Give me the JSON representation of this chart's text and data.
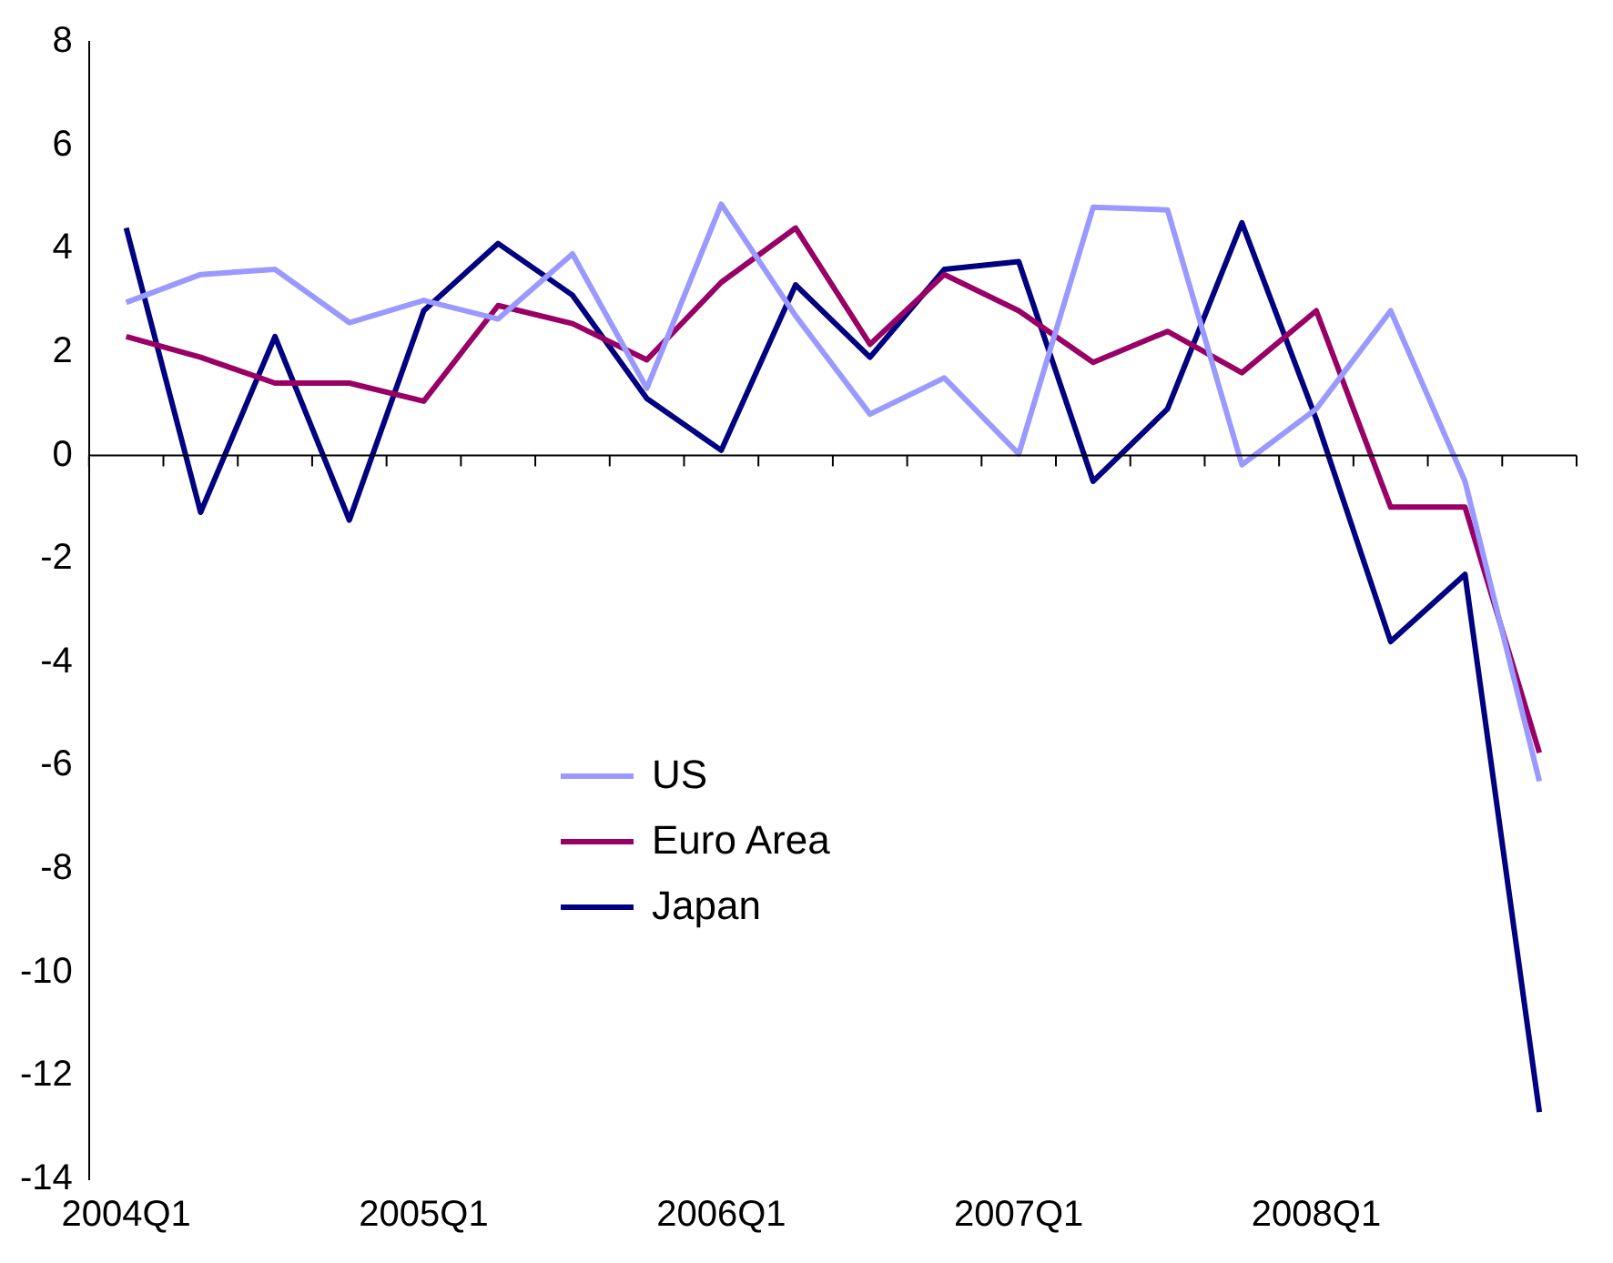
{
  "chart_data": {
    "type": "line",
    "categories": [
      "2004Q1",
      null,
      null,
      null,
      "2005Q1",
      null,
      null,
      null,
      "2006Q1",
      null,
      null,
      null,
      "2007Q1",
      null,
      null,
      null,
      "2008Q1",
      null,
      null,
      null
    ],
    "series": [
      {
        "name": "US",
        "color": "#9999ff",
        "values": [
          2.96,
          3.5,
          3.6,
          2.57,
          3.0,
          2.64,
          3.9,
          1.3,
          4.86,
          2.7,
          0.8,
          1.5,
          0.03,
          4.8,
          4.75,
          -0.18,
          0.9,
          2.8,
          -0.5,
          -6.3
        ]
      },
      {
        "name": "Euro Area",
        "color": "#990066",
        "values": [
          2.3,
          1.9,
          1.4,
          1.4,
          1.05,
          2.9,
          2.55,
          1.85,
          3.35,
          4.4,
          2.15,
          3.5,
          2.8,
          1.8,
          2.4,
          1.6,
          2.8,
          -1.0,
          -1.0,
          -5.75
        ]
      },
      {
        "name": "Japan",
        "color": "#000080",
        "values": [
          4.4,
          -1.1,
          2.3,
          -1.25,
          2.8,
          4.1,
          3.1,
          1.1,
          0.1,
          3.3,
          1.9,
          3.6,
          3.75,
          -0.5,
          0.9,
          4.5,
          0.7,
          -3.6,
          -2.3,
          -12.7
        ]
      }
    ],
    "ylim": [
      -14,
      8
    ],
    "yticks": [
      -14,
      -12,
      -10,
      -8,
      -6,
      -4,
      -2,
      0,
      2,
      4,
      6,
      8
    ],
    "ref_lines": [
      {
        "axis": "y",
        "value": 0,
        "color": "#000000"
      }
    ],
    "legend": "center",
    "grid": false,
    "marker": "none",
    "line_style": "solid"
  }
}
